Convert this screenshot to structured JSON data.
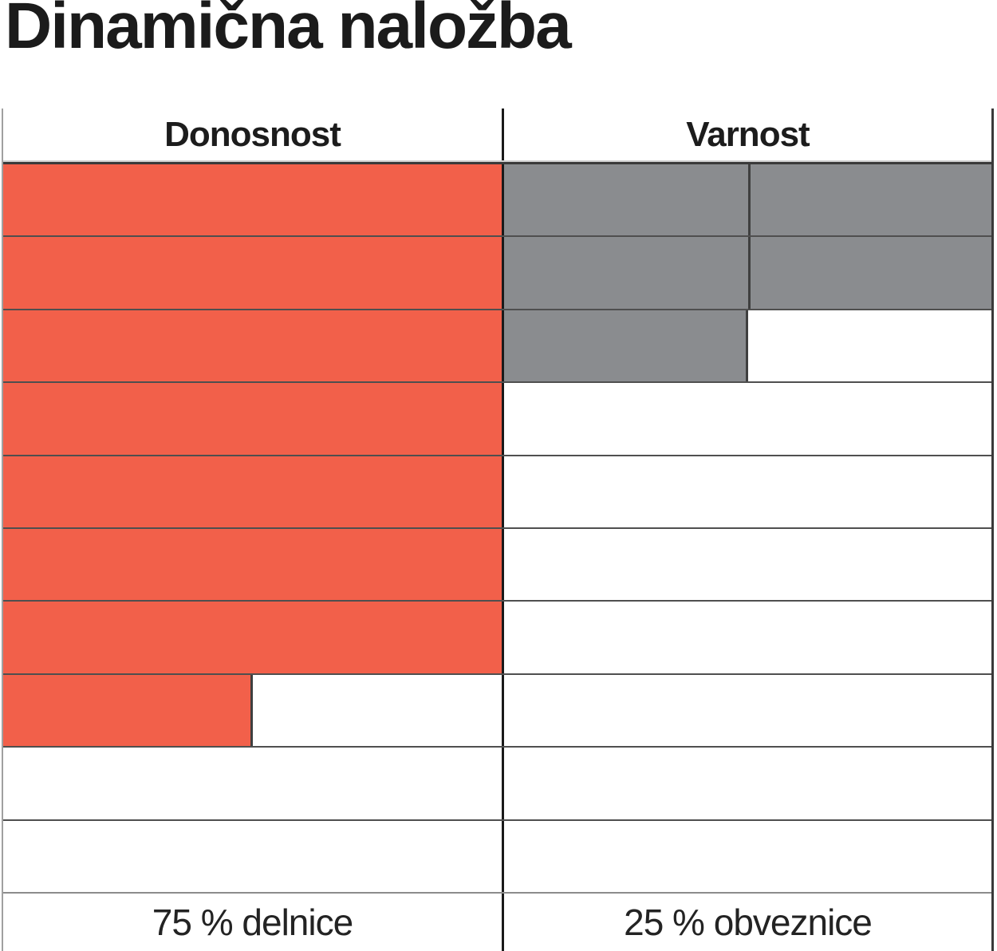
{
  "page": {
    "title": "Dinamična naložba"
  },
  "table": {
    "header": {
      "left": "Donosnost",
      "right": "Varnost"
    },
    "footer": {
      "left": "75 % delnice",
      "right": "25 % obveznice"
    }
  },
  "chart_data": {
    "type": "table",
    "title": "Dinamična naložba",
    "description": "Rating grid: each column shows a score as filled rows out of 10 (top-down), plus portfolio allocation labels",
    "rows": 10,
    "series": [
      {
        "name": "Donosnost",
        "score": 7.5,
        "max": 10,
        "color": "#f2604a",
        "fills": [
          1,
          1,
          1,
          1,
          1,
          1,
          1,
          0.5,
          0,
          0
        ],
        "segmented": false,
        "footer_label": "75 % delnice"
      },
      {
        "name": "Varnost",
        "score": 2.5,
        "max": 10,
        "color": "#8a8c8f",
        "fills": [
          1,
          1,
          0.5,
          0,
          0,
          0,
          0,
          0,
          0,
          0
        ],
        "segmented": true,
        "footer_label": "25 % obveznice"
      }
    ],
    "layout": {
      "legend": "none",
      "grid": "on",
      "colors": {
        "bar_orange": "#f2604a",
        "bar_gray": "#8a8c8f",
        "grid_line": "#4f4f4f",
        "grid_line_light": "#8c8c8c",
        "column_divider": "#1a1a1a",
        "bar_edge": "#3f3f3f",
        "frame_left": "#a0a0a0",
        "frame_right": "#3a3a3a",
        "text": "#1c1c1c"
      }
    }
  }
}
